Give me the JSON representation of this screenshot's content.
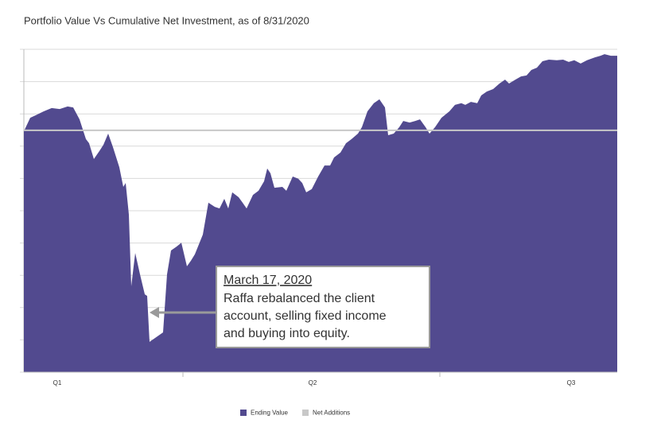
{
  "chart_data": {
    "type": "area",
    "title": "Portfolio Value Vs Cumulative Net Investment, as of 8/31/2020",
    "xlim": [
      0,
      746
    ],
    "xticks": [
      {
        "value": 42,
        "label": "Q1"
      },
      {
        "value": 363,
        "label": "Q2"
      },
      {
        "value": 688,
        "label": "Q3"
      }
    ],
    "xtick_marks": [
      200,
      523
    ],
    "ylim": [
      0,
      10
    ],
    "yticks": [
      0,
      1,
      2,
      3,
      4,
      5,
      6,
      7,
      8,
      9,
      10
    ],
    "ytick_labels": false,
    "grid": true,
    "legend": "bottom",
    "series": [
      {
        "name": "Ending Value",
        "color": "#524a8f",
        "kind": "area",
        "x": [
          0,
          8,
          15,
          25,
          35,
          45,
          55,
          62,
          70,
          78,
          82,
          88,
          95,
          100,
          106,
          112,
          120,
          125,
          128,
          132,
          135,
          140,
          146,
          152,
          155,
          158,
          165,
          175,
          180,
          185,
          192,
          198,
          205,
          210,
          215,
          225,
          232,
          240,
          246,
          252,
          257,
          262,
          270,
          275,
          280,
          288,
          295,
          302,
          306,
          310,
          315,
          325,
          330,
          338,
          345,
          350,
          355,
          362,
          370,
          378,
          385,
          390,
          398,
          405,
          412,
          420,
          425,
          432,
          440,
          447,
          454,
          458,
          465,
          472,
          477,
          485,
          492,
          498,
          505,
          510,
          517,
          525,
          535,
          542,
          550,
          555,
          562,
          570,
          575,
          582,
          590,
          598,
          605,
          610,
          618,
          625,
          632,
          638,
          645,
          652,
          660,
          670,
          678,
          685,
          692,
          700,
          708,
          718,
          725,
          730,
          738,
          746
        ],
        "values": [
          7.46,
          7.88,
          7.96,
          8.08,
          8.18,
          8.15,
          8.23,
          8.2,
          7.83,
          7.22,
          7.09,
          6.6,
          6.85,
          7.04,
          7.39,
          6.97,
          6.35,
          5.74,
          5.86,
          4.88,
          2.66,
          3.69,
          3.03,
          2.41,
          2.36,
          0.94,
          1.06,
          1.23,
          3.03,
          3.77,
          3.89,
          4.01,
          3.28,
          3.45,
          3.65,
          4.26,
          5.25,
          5.12,
          5.07,
          5.37,
          5.07,
          5.57,
          5.42,
          5.25,
          5.07,
          5.49,
          5.62,
          5.91,
          6.31,
          6.16,
          5.71,
          5.74,
          5.62,
          6.06,
          5.99,
          5.86,
          5.57,
          5.67,
          6.06,
          6.4,
          6.4,
          6.65,
          6.8,
          7.09,
          7.22,
          7.39,
          7.59,
          8.08,
          8.33,
          8.45,
          8.2,
          7.34,
          7.39,
          7.59,
          7.78,
          7.73,
          7.78,
          7.83,
          7.59,
          7.39,
          7.59,
          7.88,
          8.08,
          8.28,
          8.33,
          8.28,
          8.37,
          8.33,
          8.57,
          8.69,
          8.77,
          8.94,
          9.06,
          8.94,
          9.06,
          9.16,
          9.19,
          9.36,
          9.43,
          9.63,
          9.68,
          9.66,
          9.68,
          9.61,
          9.66,
          9.56,
          9.66,
          9.75,
          9.8,
          9.85,
          9.8,
          9.8
        ]
      },
      {
        "name": "Net Additions",
        "color": "#c8c8c8",
        "kind": "line",
        "x": [
          0,
          746
        ],
        "values": [
          7.49,
          7.49
        ]
      }
    ],
    "annotation": {
      "title": "March 17, 2020",
      "lines": [
        "Raffa rebalanced the client",
        "account, selling fixed income",
        "and buying into equity."
      ]
    }
  }
}
